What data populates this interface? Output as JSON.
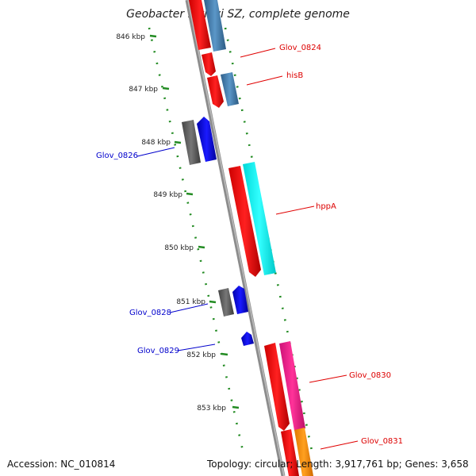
{
  "title": "Geobacter lovleyi SZ, complete genome",
  "ticks": [
    "846 kbp",
    "847 kbp",
    "848 kbp",
    "849 kbp",
    "850 kbp",
    "851 kbp",
    "852 kbp",
    "853 kbp"
  ],
  "labels": {
    "glov0824": "Glov_0824",
    "hisB": "hisB",
    "glov0826": "Glov_0826",
    "hppA": "hppA",
    "glov0828": "Glov_0828",
    "glov0829": "Glov_0829",
    "glov0830": "Glov_0830",
    "glov0831": "Glov_0831"
  },
  "footer": {
    "accession": "Accession: NC_010814",
    "topology": "Topology: circular; Length: 3,917,761 bp; Genes: 3,658"
  },
  "colors": {
    "cds_forward": "#ff0000",
    "cds_reverse": "#0000ff",
    "steelblue": "#4682b4",
    "cyan": "#00ffff",
    "magenta": "#ff1493",
    "orange": "#ff9900",
    "gray": "#666666",
    "tick": "#228b22",
    "backbone": "#808080"
  }
}
